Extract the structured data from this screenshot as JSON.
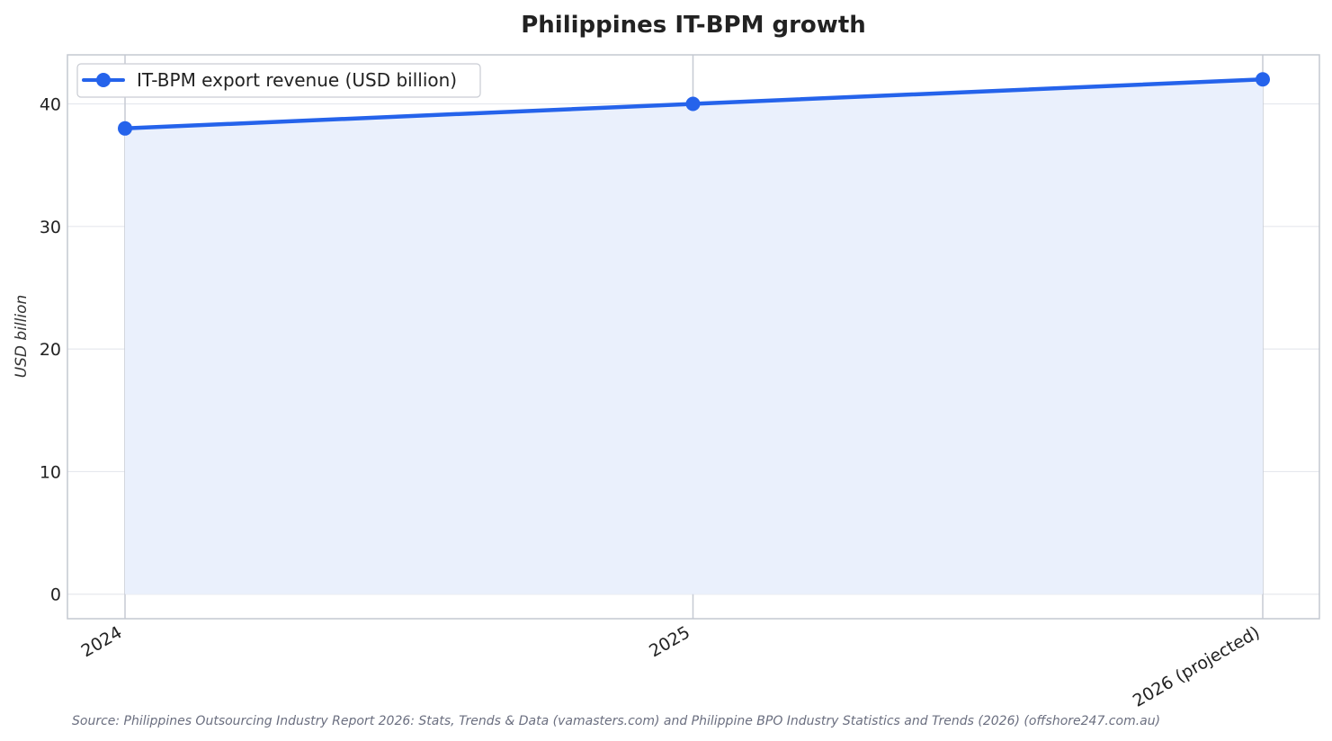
{
  "chart_data": {
    "type": "line",
    "title": "Philippines IT-BPM growth",
    "xlabel": "",
    "ylabel": "USD billion",
    "categories": [
      "2024",
      "2025",
      "2026 (projected)"
    ],
    "series": [
      {
        "name": "IT-BPM export revenue (USD billion)",
        "values": [
          38,
          40,
          42
        ],
        "color": "#2563eb",
        "fill_color": "#eaf0fc"
      }
    ],
    "ylim": [
      -2,
      44
    ],
    "yticks": [
      "0",
      "10",
      "20",
      "30",
      "40"
    ],
    "grid": true,
    "legend": "top-left",
    "source": "Source: Philippines Outsourcing Industry Report 2026: Stats, Trends & Data (vamasters.com) and Philippine BPO Industry Statistics and Trends (2026) (offshore247.com.au)"
  }
}
